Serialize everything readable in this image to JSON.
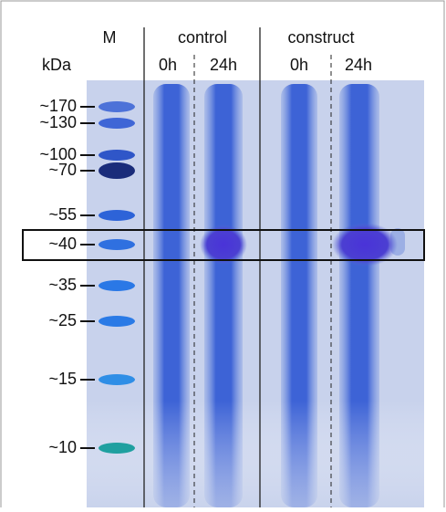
{
  "header": {
    "marker_lane": "M",
    "groups": [
      "control",
      "construct"
    ],
    "unit": "kDa",
    "lanes": [
      "0h",
      "24h",
      "0h",
      "24h"
    ]
  },
  "markers": [
    "~170",
    "~130",
    "~100",
    "~70",
    "~55",
    "~40",
    "~35",
    "~25",
    "~15",
    "~10"
  ]
}
